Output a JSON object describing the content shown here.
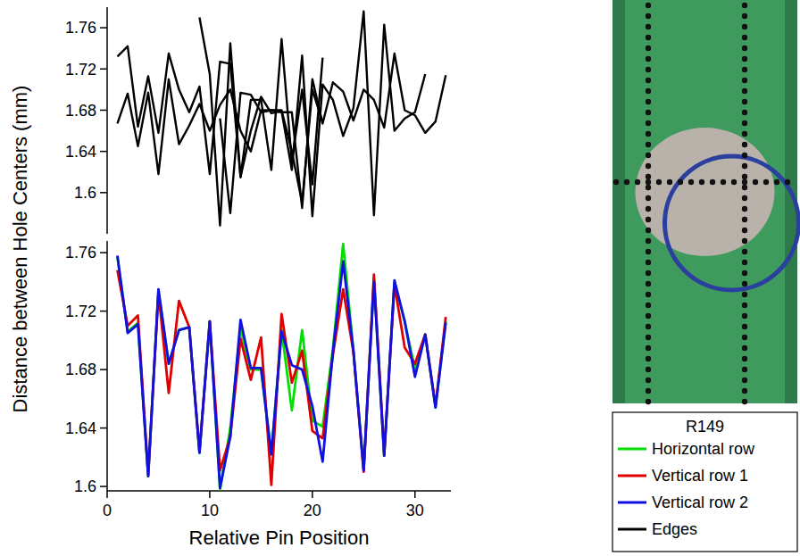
{
  "chart_data": [
    {
      "type": "line",
      "tick_labels": "y",
      "x": [
        1,
        2,
        3,
        4,
        5,
        6,
        7,
        8,
        9,
        10,
        11,
        12,
        13,
        14,
        15,
        16,
        17,
        18,
        19,
        20,
        21,
        22,
        23,
        24,
        25,
        26,
        27,
        28,
        29,
        30,
        31,
        32,
        33
      ],
      "xlim": [
        0,
        33.5
      ],
      "ylim": [
        1.56,
        1.78
      ],
      "yticks": [
        1.6,
        1.64,
        1.68,
        1.72,
        1.76
      ],
      "series": [
        {
          "name": "Edges",
          "color": "#000000",
          "values": [
            1.732,
            1.742,
            1.664,
            1.713,
            1.658,
            1.735,
            1.7,
            1.678,
            1.703,
            1.618,
            1.727,
            1.725,
            1.615,
            1.69,
            1.69,
            1.622,
            1.749,
            1.63,
            1.7,
            1.608,
            1.731,
            null,
            null,
            null,
            null,
            null,
            null,
            null,
            null,
            null,
            null,
            null,
            null
          ]
        },
        {
          "name": "Edges",
          "color": "#000000",
          "values": [
            1.667,
            1.696,
            1.645,
            1.697,
            1.618,
            1.71,
            1.647,
            1.665,
            1.686,
            1.66,
            1.685,
            1.7,
            1.66,
            1.64,
            1.68,
            1.68,
            1.678,
            1.678,
            1.585,
            1.71,
            1.667,
            1.707,
            1.698,
            1.67,
            1.7,
            1.69,
            1.663,
            1.735,
            1.68,
            1.675,
            1.658,
            1.669,
            1.714
          ]
        },
        {
          "name": "Edges",
          "color": "#000000",
          "values": [
            null,
            null,
            null,
            null,
            null,
            null,
            null,
            null,
            1.77,
            1.715,
            1.568,
            1.745,
            1.615,
            1.66,
            1.693,
            1.677,
            1.679,
            1.622,
            1.733,
            1.577,
            1.705,
            1.69,
            1.655,
            1.682,
            1.776,
            1.578,
            1.763,
            1.66,
            1.672,
            1.678,
            1.715,
            null,
            null
          ]
        },
        {
          "name": "Edges",
          "color": "#000000",
          "values": [
            null,
            null,
            null,
            null,
            null,
            null,
            null,
            null,
            null,
            null,
            1.672,
            1.58,
            1.697,
            1.695,
            1.678,
            1.68,
            1.68,
            1.64,
            1.59,
            1.7,
            1.668,
            null,
            null,
            null,
            null,
            null,
            null,
            null,
            null,
            null,
            null,
            null,
            null
          ]
        }
      ]
    },
    {
      "type": "line",
      "ylabel": "Distance between Hole Centers (mm)",
      "xlabel": "Relative Pin Position",
      "legend": "right",
      "legend_title": "R149",
      "x": [
        1,
        2,
        3,
        4,
        5,
        6,
        7,
        8,
        9,
        10,
        11,
        12,
        13,
        14,
        15,
        16,
        17,
        18,
        19,
        20,
        21,
        22,
        23,
        24,
        25,
        26,
        27,
        28,
        29,
        30,
        31,
        32,
        33
      ],
      "xlim": [
        0,
        33.5
      ],
      "xticks": [
        0,
        10,
        20,
        30
      ],
      "ylim": [
        1.597,
        1.768
      ],
      "yticks": [
        1.6,
        1.64,
        1.68,
        1.72,
        1.76
      ],
      "series": [
        {
          "name": "Horizontal row",
          "color": "#00e000",
          "values": [
            1.757,
            1.706,
            1.712,
            1.607,
            1.734,
            1.684,
            1.707,
            1.709,
            1.623,
            1.713,
            1.598,
            1.64,
            1.708,
            1.68,
            1.68,
            1.622,
            1.707,
            1.652,
            1.707,
            1.645,
            1.641,
            1.694,
            1.766,
            1.693,
            1.612,
            1.742,
            1.621,
            1.74,
            1.713,
            1.68,
            1.704,
            1.654,
            1.713
          ]
        },
        {
          "name": "Vertical row 1",
          "color": "#e00000",
          "values": [
            1.748,
            1.71,
            1.717,
            1.608,
            1.733,
            1.664,
            1.727,
            1.709,
            1.624,
            1.713,
            1.611,
            1.634,
            1.701,
            1.673,
            1.702,
            1.601,
            1.718,
            1.671,
            1.693,
            1.638,
            1.633,
            1.69,
            1.735,
            1.692,
            1.61,
            1.745,
            1.622,
            1.738,
            1.695,
            1.684,
            1.704,
            1.655,
            1.716
          ]
        },
        {
          "name": "Vertical row 2",
          "color": "#1010e0",
          "values": [
            1.758,
            1.705,
            1.711,
            1.607,
            1.735,
            1.684,
            1.707,
            1.709,
            1.623,
            1.713,
            1.599,
            1.634,
            1.714,
            1.681,
            1.681,
            1.622,
            1.706,
            1.683,
            1.68,
            1.655,
            1.617,
            1.692,
            1.754,
            1.693,
            1.611,
            1.74,
            1.621,
            1.741,
            1.713,
            1.675,
            1.704,
            1.654,
            1.712
          ]
        }
      ]
    }
  ]
}
